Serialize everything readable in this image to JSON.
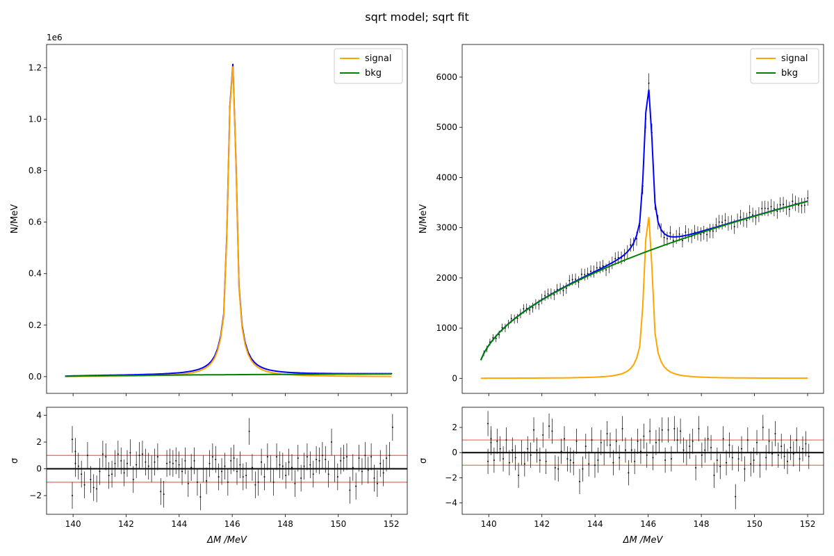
{
  "figure": {
    "title": "sqrt model; sqrt fit"
  },
  "colors": {
    "signal": "#ffa500",
    "bkg": "#008000",
    "total": "#0000ff",
    "data": "#000000",
    "band": "#ff6b6b"
  },
  "chart_data": [
    {
      "type": "line",
      "panel": "left-main",
      "ylabel": "N/MeV",
      "offset_text": "1e6",
      "xlim": [
        139.0,
        152.6
      ],
      "ylim": [
        -65000,
        1290000
      ],
      "yscale": 1000000,
      "yticks": [
        0,
        200000,
        400000,
        600000,
        800000,
        1000000,
        1200000
      ],
      "ytick_labels": [
        "0.0",
        "0.2",
        "0.4",
        "0.6",
        "0.8",
        "1.0",
        "1.2"
      ],
      "xticks": [
        140,
        142,
        144,
        146,
        148,
        150,
        152
      ],
      "legend": [
        {
          "label": "signal",
          "key": "signal"
        },
        {
          "label": "bkg",
          "key": "bkg"
        }
      ],
      "model": {
        "signal_amplitude": 1220000,
        "bkg_amplitude": 3000,
        "peak": 146.0,
        "width": 0.17
      }
    },
    {
      "type": "line",
      "panel": "left-pull",
      "xlabel": "ΔM /MeV",
      "ylabel": "σ",
      "xlim": [
        139.0,
        152.6
      ],
      "ylim": [
        -3.4,
        4.6
      ],
      "yticks": [
        -2,
        0,
        2,
        4
      ],
      "ytick_labels": [
        "−2",
        "0",
        "2",
        "4"
      ],
      "xticks": [
        140,
        142,
        144,
        146,
        148,
        150,
        152
      ],
      "xtick_labels": [
        "140",
        "142",
        "144",
        "146",
        "148",
        "150",
        "152"
      ],
      "bands": [
        -1,
        1
      ],
      "pulls": [
        2.2,
        1.3,
        0.2,
        -0.4,
        -1.2,
        1.0,
        -0.8,
        -1.4,
        -1.5,
        -0.2,
        1.1,
        0.9,
        -0.5,
        -0.4,
        0.4,
        1.1,
        0.6,
        -0.3,
        0.4,
        1.2,
        -0.8,
        0.3,
        1.0,
        1.1,
        0.5,
        0.2,
        0.0,
        0.5,
        0.9,
        -1.7,
        -1.9,
        0.4,
        0.5,
        0.4,
        0.6,
        0.3,
        -0.2,
        0.6,
        -1.1,
        0.1,
        0.6,
        -1.0,
        -2.1,
        0.0,
        -0.9,
        0.4,
        0.9,
        0.7,
        -0.6,
        -0.2,
        0.2,
        -1.0,
        0.6,
        0.8,
        -0.2,
        0.3,
        -0.6,
        -0.5,
        2.8,
        0.1,
        -1.2,
        -1.0,
        0.5,
        -0.6,
        0.9,
        0.0,
        -1.0,
        0.9,
        0.3,
        0.2,
        -0.5,
        0.5,
        0.1,
        -1.1,
        0.8,
        -0.7,
        0.2,
        0.9,
        0.3,
        -0.4,
        0.7,
        0.6,
        1.0,
        0.7,
        -0.4,
        2.0,
        0.0,
        -0.6,
        0.6,
        0.8,
        0.9,
        -1.6,
        0.1,
        -1.3,
        0.8,
        -0.2,
        1.0,
        -0.1,
        0.9,
        -0.7,
        -1.1,
        0.4,
        -0.3,
        0.8,
        1.0,
        3.1,
        -2.0,
        0.4
      ]
    },
    {
      "type": "line",
      "panel": "right-main",
      "ylabel": "N/MeV",
      "xlim": [
        139.0,
        152.6
      ],
      "ylim": [
        -300,
        6650
      ],
      "yticks": [
        0,
        1000,
        2000,
        3000,
        4000,
        5000,
        6000
      ],
      "ytick_labels": [
        "0",
        "1000",
        "2000",
        "3000",
        "4000",
        "5000",
        "6000"
      ],
      "xticks": [
        140,
        142,
        144,
        146,
        148,
        150,
        152
      ],
      "legend": [
        {
          "label": "signal",
          "key": "signal"
        },
        {
          "label": "bkg",
          "key": "bkg"
        }
      ],
      "model": {
        "signal_amplitude": 3250,
        "bkg_amplitude": 1000,
        "peak": 146.0,
        "width": 0.17
      }
    },
    {
      "type": "line",
      "panel": "right-pull",
      "xlabel": "ΔM /MeV",
      "ylabel": "σ",
      "xlim": [
        139.0,
        152.6
      ],
      "ylim": [
        -4.9,
        3.6
      ],
      "yticks": [
        -4,
        -2,
        0,
        2
      ],
      "ytick_labels": [
        "−4",
        "−2",
        "0",
        "2"
      ],
      "xticks": [
        140,
        142,
        144,
        146,
        148,
        150,
        152
      ],
      "xtick_labels": [
        "140",
        "142",
        "144",
        "146",
        "148",
        "150",
        "152"
      ],
      "bands": [
        -1,
        1
      ],
      "pulls": [
        -0.7,
        1.1,
        -0.6,
        0.9,
        0.3,
        -0.5,
        1.0,
        -0.8,
        0.2,
        -0.4,
        -1.8,
        0.0,
        -0.9,
        0.3,
        -0.2,
        1.8,
        0.2,
        -0.6,
        1.4,
        -0.7,
        2.1,
        1.7,
        -1.2,
        -1.3,
        0.1,
        1.1,
        -0.5,
        -0.6,
        -0.8,
        0.9,
        -2.3,
        -1.3,
        0.5,
        -0.9,
        1.0,
        -1.0,
        -0.6,
        0.8,
        0.0,
        1.5,
        0.6,
        -0.8,
        0.9,
        -0.4,
        1.9,
        0.2,
        -1.6,
        0.2,
        -0.7,
        0.9,
        0.1,
        1.3,
        -0.2,
        1.7,
        -0.4,
        0.8,
        1.0,
        1.8,
        -0.6,
        1.8,
        -0.5,
        1.9,
        1.0,
        1.7,
        0.2,
        0.0,
        0.5,
        0.9,
        -1.2,
        1.9,
        -0.2,
        0.2,
        1.1,
        0.4,
        -1.8,
        -0.6,
        -1.1,
        1.1,
        -0.8,
        0.6,
        -0.4,
        -3.5,
        -0.5,
        0.3,
        -1.3,
        1.0,
        -0.9,
        -0.6,
        0.8,
        -1.0,
        2.0,
        -0.4,
        0.9,
        -0.1,
        1.5,
        -0.2,
        0.5,
        -0.3,
        -0.7,
        0.4,
        -0.1,
        1.0,
        -0.5,
        0.3,
        0.7,
        -0.3,
        2.3,
        0.8
      ]
    }
  ]
}
